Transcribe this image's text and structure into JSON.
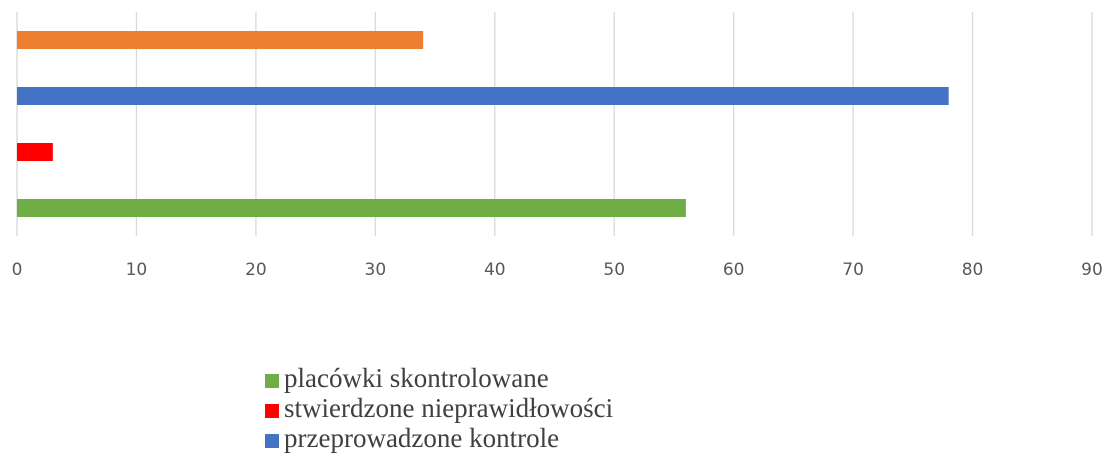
{
  "chart_data": {
    "type": "bar",
    "orientation": "horizontal",
    "series": [
      {
        "name": "placówki skontrolowane",
        "color": "#70ad47",
        "values": [
          56
        ]
      },
      {
        "name": "stwierdzone nieprawidłowości",
        "color": "#ff0000",
        "values": [
          3
        ]
      },
      {
        "name": "przeprowadzone kontrole",
        "color": "#4472c4",
        "values": [
          78
        ]
      },
      {
        "color": "#ed7d31",
        "values": [
          34
        ]
      }
    ],
    "xlim": [
      0,
      90
    ],
    "xticks": [
      0,
      10,
      20,
      30,
      40,
      50,
      60,
      70,
      80,
      90
    ],
    "grid": true,
    "legend": "bottom"
  }
}
